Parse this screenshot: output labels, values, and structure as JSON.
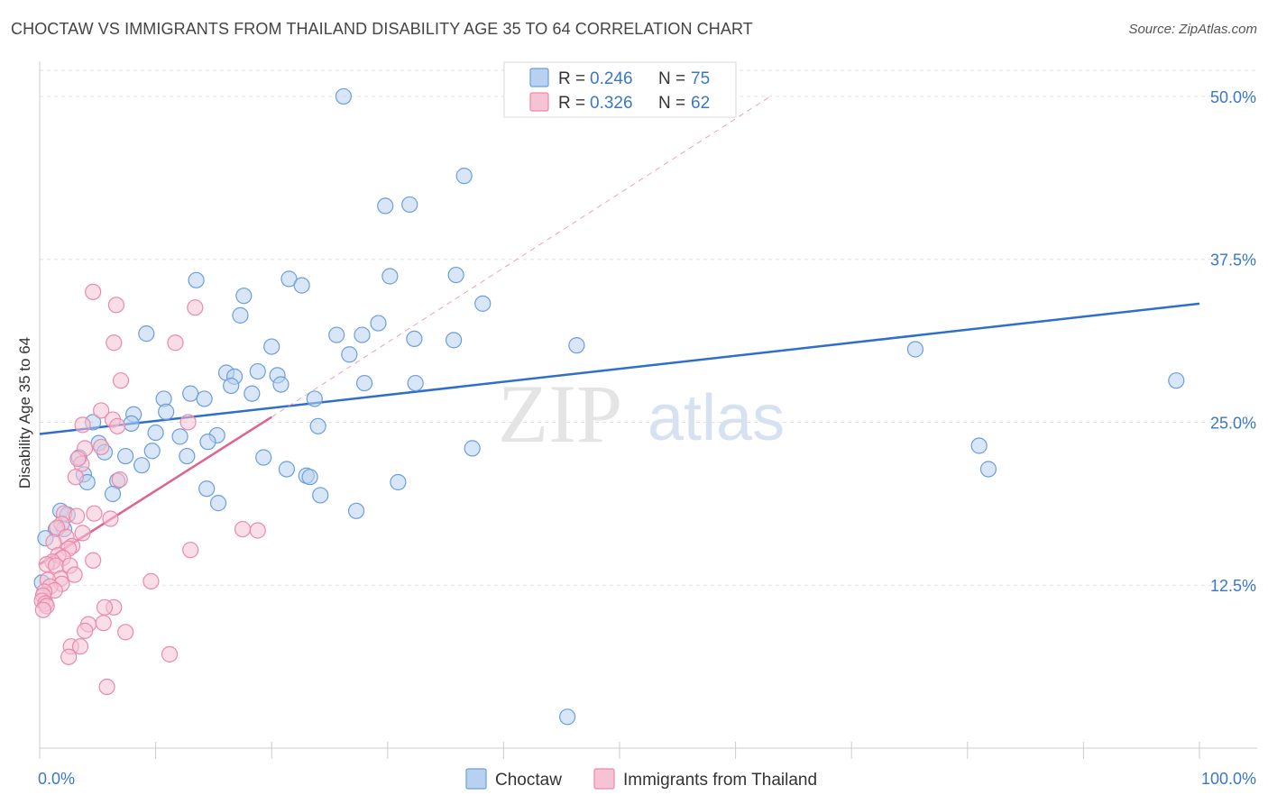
{
  "title": "CHOCTAW VS IMMIGRANTS FROM THAILAND DISABILITY AGE 35 TO 64 CORRELATION CHART",
  "source": "Source: ZipAtlas.com",
  "watermark": {
    "zip": "ZIP",
    "atlas": "atlas"
  },
  "legend": {
    "r_label": "R =",
    "n_label": "N =",
    "series": [
      {
        "name": "Choctaw",
        "r": "0.246",
        "n": "75",
        "color": "#6a9fdc",
        "fill": "#b9d1f0",
        "line_color": "#2f6fc7"
      },
      {
        "name": "Immigrants from Thailand",
        "r": "0.326",
        "n": "62",
        "color": "#e98aab",
        "fill": "#f6c3d4",
        "line_color": "#e0628f"
      }
    ]
  },
  "chart_data": {
    "type": "scatter",
    "title": "CHOCTAW VS IMMIGRANTS FROM THAILAND DISABILITY AGE 35 TO 64 CORRELATION CHART",
    "xlabel": "",
    "ylabel": "Disability Age 35 to 64",
    "xlim": [
      0,
      100
    ],
    "ylim": [
      0,
      52
    ],
    "x_tick_labels": [
      "0.0%",
      "100.0%"
    ],
    "y_ticks": [
      12.5,
      25.0,
      37.5,
      50.0
    ],
    "y_tick_labels": [
      "12.5%",
      "25.0%",
      "37.5%",
      "50.0%"
    ],
    "grid": "horizontal dashed",
    "series": [
      {
        "name": "Choctaw",
        "r": 0.246,
        "n": 75,
        "trend": {
          "x": [
            0,
            100
          ],
          "y": [
            24.1,
            34.1
          ],
          "style": "solid"
        },
        "points": [
          [
            26.2,
            50.0
          ],
          [
            36.6,
            43.9
          ],
          [
            29.8,
            41.6
          ],
          [
            31.9,
            41.7
          ],
          [
            13.5,
            35.9
          ],
          [
            21.5,
            36.0
          ],
          [
            22.6,
            35.5
          ],
          [
            30.2,
            36.2
          ],
          [
            35.9,
            36.3
          ],
          [
            17.6,
            34.7
          ],
          [
            17.3,
            33.2
          ],
          [
            38.2,
            34.1
          ],
          [
            29.2,
            32.6
          ],
          [
            9.2,
            31.8
          ],
          [
            25.6,
            31.7
          ],
          [
            27.8,
            31.7
          ],
          [
            32.3,
            31.4
          ],
          [
            35.7,
            31.3
          ],
          [
            46.3,
            30.9
          ],
          [
            20.0,
            30.8
          ],
          [
            26.7,
            30.2
          ],
          [
            75.5,
            30.6
          ],
          [
            98.0,
            28.2
          ],
          [
            16.1,
            28.8
          ],
          [
            18.8,
            28.9
          ],
          [
            16.8,
            28.5
          ],
          [
            20.5,
            28.6
          ],
          [
            28.0,
            28.0
          ],
          [
            32.4,
            28.0
          ],
          [
            16.5,
            27.8
          ],
          [
            20.8,
            27.9
          ],
          [
            18.3,
            27.2
          ],
          [
            13.0,
            27.2
          ],
          [
            10.7,
            26.8
          ],
          [
            14.2,
            26.8
          ],
          [
            23.7,
            26.8
          ],
          [
            8.1,
            25.6
          ],
          [
            10.9,
            25.8
          ],
          [
            4.6,
            25.0
          ],
          [
            7.9,
            24.9
          ],
          [
            24.0,
            24.7
          ],
          [
            10.0,
            24.2
          ],
          [
            15.3,
            24.0
          ],
          [
            12.1,
            23.9
          ],
          [
            14.5,
            23.5
          ],
          [
            5.1,
            23.4
          ],
          [
            9.7,
            22.8
          ],
          [
            81.0,
            23.2
          ],
          [
            5.6,
            22.7
          ],
          [
            7.4,
            22.4
          ],
          [
            12.7,
            22.4
          ],
          [
            3.4,
            22.3
          ],
          [
            19.3,
            22.3
          ],
          [
            37.3,
            23.0
          ],
          [
            8.8,
            21.7
          ],
          [
            21.3,
            21.4
          ],
          [
            3.8,
            21.0
          ],
          [
            23.0,
            20.9
          ],
          [
            23.3,
            20.8
          ],
          [
            81.8,
            21.4
          ],
          [
            4.1,
            20.4
          ],
          [
            6.7,
            20.5
          ],
          [
            30.9,
            20.4
          ],
          [
            14.4,
            19.9
          ],
          [
            6.3,
            19.5
          ],
          [
            24.2,
            19.4
          ],
          [
            15.4,
            18.8
          ],
          [
            27.3,
            18.2
          ],
          [
            1.8,
            18.2
          ],
          [
            2.4,
            17.9
          ],
          [
            2.1,
            16.8
          ],
          [
            1.4,
            16.8
          ],
          [
            0.5,
            16.1
          ],
          [
            45.5,
            2.4
          ],
          [
            0.2,
            12.7
          ]
        ]
      },
      {
        "name": "Immigrants from Thailand",
        "r": 0.326,
        "n": 62,
        "trend": {
          "x": [
            0,
            20
          ],
          "y": [
            14.1,
            25.4
          ],
          "style": "solid",
          "extended": {
            "x": [
              20,
              63
            ],
            "y": [
              25.4,
              50.0
            ],
            "style": "dashed"
          }
        },
        "points": [
          [
            4.6,
            35.0
          ],
          [
            6.6,
            34.0
          ],
          [
            13.4,
            33.8
          ],
          [
            6.4,
            31.1
          ],
          [
            11.7,
            31.1
          ],
          [
            7.0,
            28.2
          ],
          [
            5.3,
            25.9
          ],
          [
            6.3,
            25.2
          ],
          [
            12.8,
            25.0
          ],
          [
            3.7,
            24.8
          ],
          [
            6.7,
            24.7
          ],
          [
            3.9,
            23.0
          ],
          [
            5.3,
            23.1
          ],
          [
            3.6,
            21.8
          ],
          [
            3.3,
            22.2
          ],
          [
            3.1,
            20.8
          ],
          [
            6.9,
            20.6
          ],
          [
            4.7,
            18.0
          ],
          [
            2.1,
            18.0
          ],
          [
            3.2,
            17.8
          ],
          [
            6.1,
            17.6
          ],
          [
            1.9,
            17.2
          ],
          [
            1.5,
            16.9
          ],
          [
            17.5,
            16.8
          ],
          [
            18.8,
            16.7
          ],
          [
            3.7,
            16.5
          ],
          [
            2.3,
            16.2
          ],
          [
            1.2,
            15.8
          ],
          [
            2.8,
            15.5
          ],
          [
            2.5,
            15.3
          ],
          [
            13.0,
            15.2
          ],
          [
            1.6,
            14.8
          ],
          [
            2.0,
            14.6
          ],
          [
            1.1,
            14.3
          ],
          [
            0.6,
            14.1
          ],
          [
            1.4,
            14.0
          ],
          [
            4.6,
            14.4
          ],
          [
            2.6,
            14.0
          ],
          [
            3.0,
            13.3
          ],
          [
            1.8,
            13.0
          ],
          [
            0.7,
            12.9
          ],
          [
            9.6,
            12.8
          ],
          [
            1.9,
            12.6
          ],
          [
            0.9,
            12.4
          ],
          [
            1.3,
            12.1
          ],
          [
            0.4,
            12.0
          ],
          [
            0.3,
            11.7
          ],
          [
            0.2,
            11.3
          ],
          [
            0.5,
            11.1
          ],
          [
            0.6,
            10.9
          ],
          [
            0.3,
            10.6
          ],
          [
            6.4,
            10.8
          ],
          [
            5.6,
            10.8
          ],
          [
            4.2,
            9.5
          ],
          [
            3.9,
            9.0
          ],
          [
            5.5,
            9.6
          ],
          [
            7.4,
            8.9
          ],
          [
            2.7,
            7.8
          ],
          [
            3.5,
            7.8
          ],
          [
            11.2,
            7.2
          ],
          [
            2.5,
            7.0
          ],
          [
            5.8,
            4.7
          ]
        ]
      }
    ]
  }
}
